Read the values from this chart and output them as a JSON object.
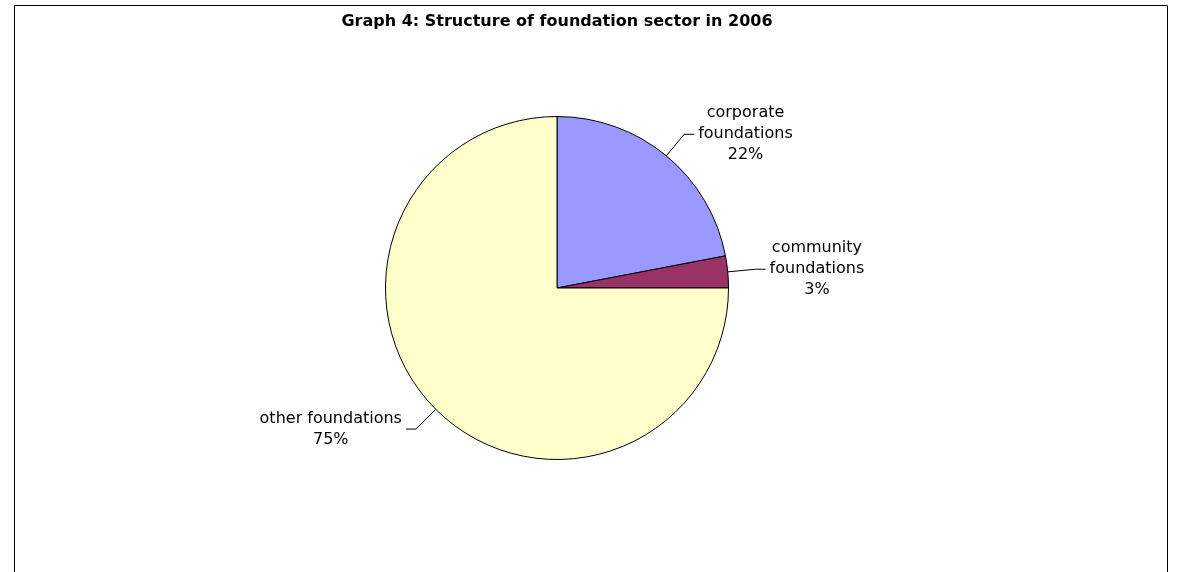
{
  "chart_data": {
    "type": "pie",
    "title": "Graph 4: Structure of foundation sector in 2006",
    "categories": [
      "corporate foundations",
      "community foundations",
      "other foundations"
    ],
    "values": [
      22,
      3,
      75
    ],
    "value_labels": [
      "22%",
      "3%",
      "75%"
    ],
    "colors": [
      "#9999ff",
      "#993366",
      "#ffffcc"
    ],
    "legend": false
  }
}
